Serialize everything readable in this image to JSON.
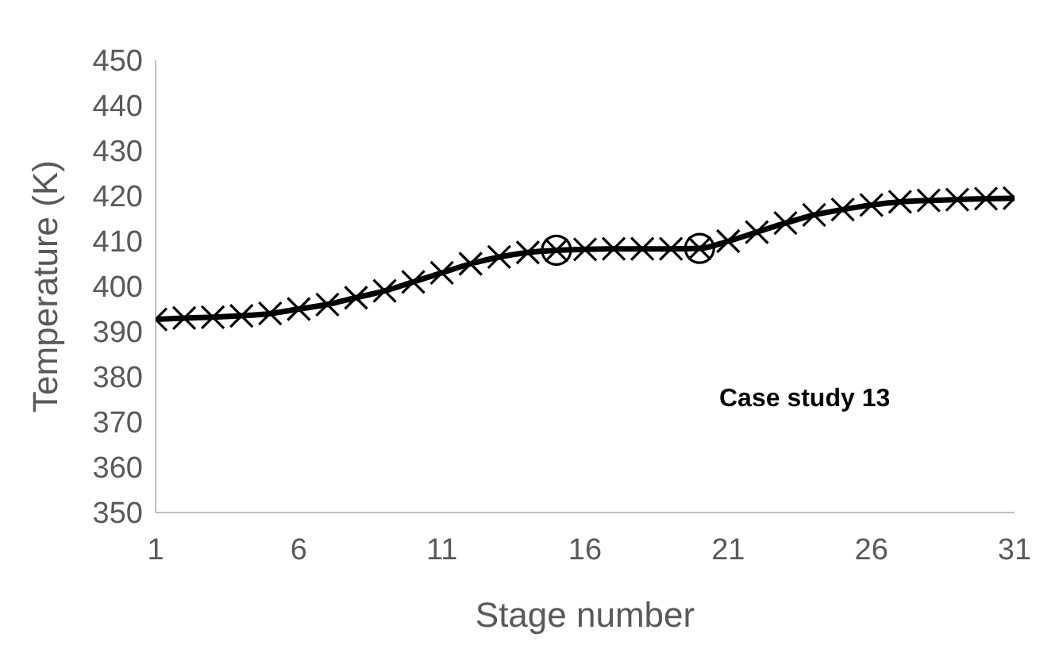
{
  "chart_data": {
    "type": "line",
    "xlabel": "Stage number",
    "ylabel": "Temperature (K)",
    "annotations": [
      "Case study 13"
    ],
    "xlim": [
      1,
      31
    ],
    "xticks": [
      1,
      6,
      11,
      16,
      21,
      26,
      31
    ],
    "ylim": [
      350,
      450
    ],
    "yticks": [
      350,
      360,
      370,
      380,
      390,
      400,
      410,
      420,
      430,
      440,
      450
    ],
    "grid": false,
    "series": [
      {
        "color": "#000000",
        "marker": "cross",
        "line_style": "solid",
        "x": [
          1,
          2,
          3,
          4,
          5,
          6,
          7,
          8,
          9,
          10,
          11,
          12,
          13,
          14,
          15,
          16,
          17,
          18,
          19,
          20,
          21,
          22,
          23,
          24,
          25,
          26,
          27,
          28,
          29,
          30,
          31
        ],
        "values": [
          392.7,
          393,
          393.2,
          393.5,
          394,
          395,
          396,
          397.5,
          399,
          401,
          403,
          405,
          406.5,
          407.5,
          408,
          408.2,
          408.3,
          408.3,
          408.3,
          408.4,
          410,
          412,
          414,
          415.8,
          417,
          418,
          418.7,
          419,
          419.2,
          419.4,
          419.5
        ]
      },
      {
        "type": "scatter",
        "color": "#000000",
        "marker": "circle",
        "x": [
          15,
          20
        ],
        "values": [
          408,
          408.4
        ]
      }
    ]
  }
}
